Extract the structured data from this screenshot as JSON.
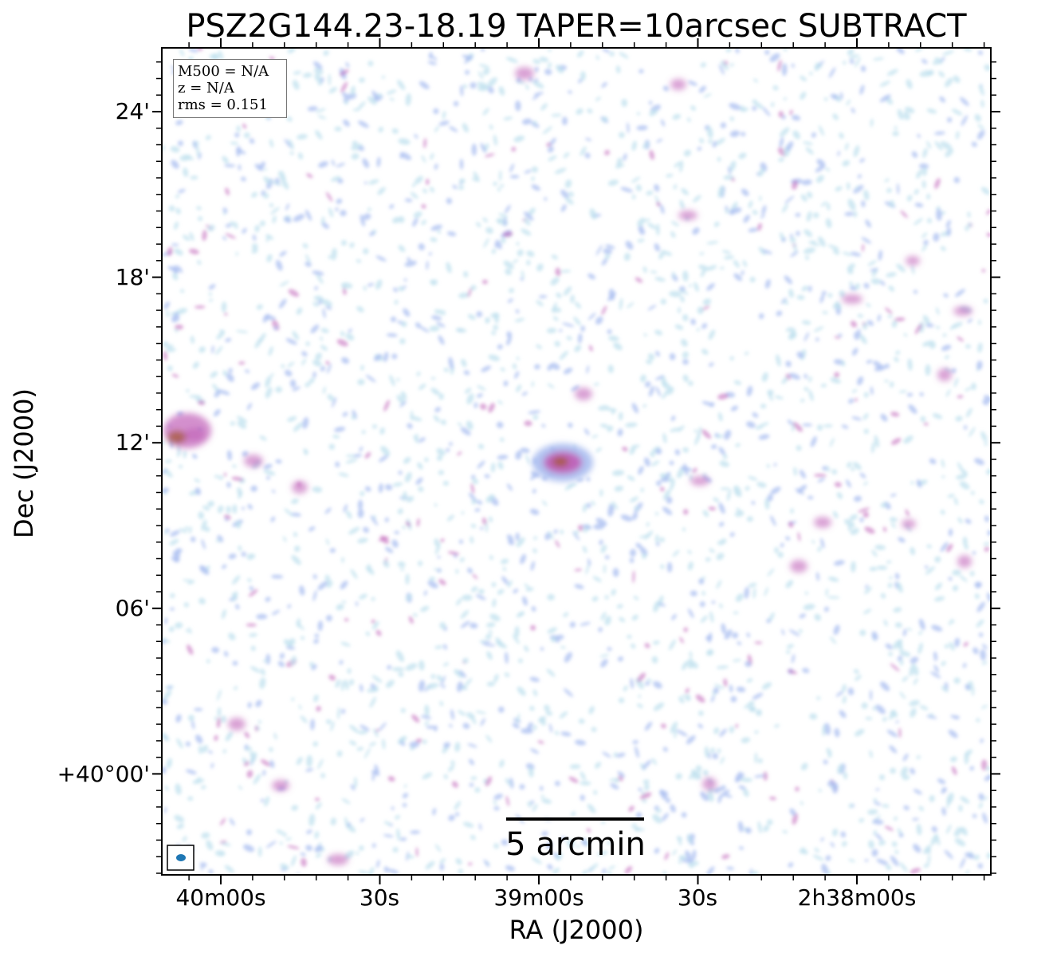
{
  "title": "PSZ2G144.23-18.19 TAPER=10arcsec SUBTRACT",
  "axes": {
    "xlabel": "RA (J2000)",
    "ylabel": "Dec (J2000)",
    "xticks": [
      "40m00s",
      "30s",
      "39m00s",
      "30s",
      "2h38m00s"
    ],
    "yticks": [
      "24'",
      "18'",
      "12'",
      "06'",
      "+40°00'"
    ]
  },
  "info": {
    "m500": "M500 = N/A",
    "z": "z = N/A",
    "rms": "rms = 0.151"
  },
  "scalebar": {
    "label": "5 arcmin"
  },
  "colors": {
    "noise_light": "#bfe0ee",
    "noise_mid": "#a9bdf0",
    "source_magenta": "#c060b8",
    "source_core": "#a85a3c",
    "beam": "#1f77b4"
  }
}
